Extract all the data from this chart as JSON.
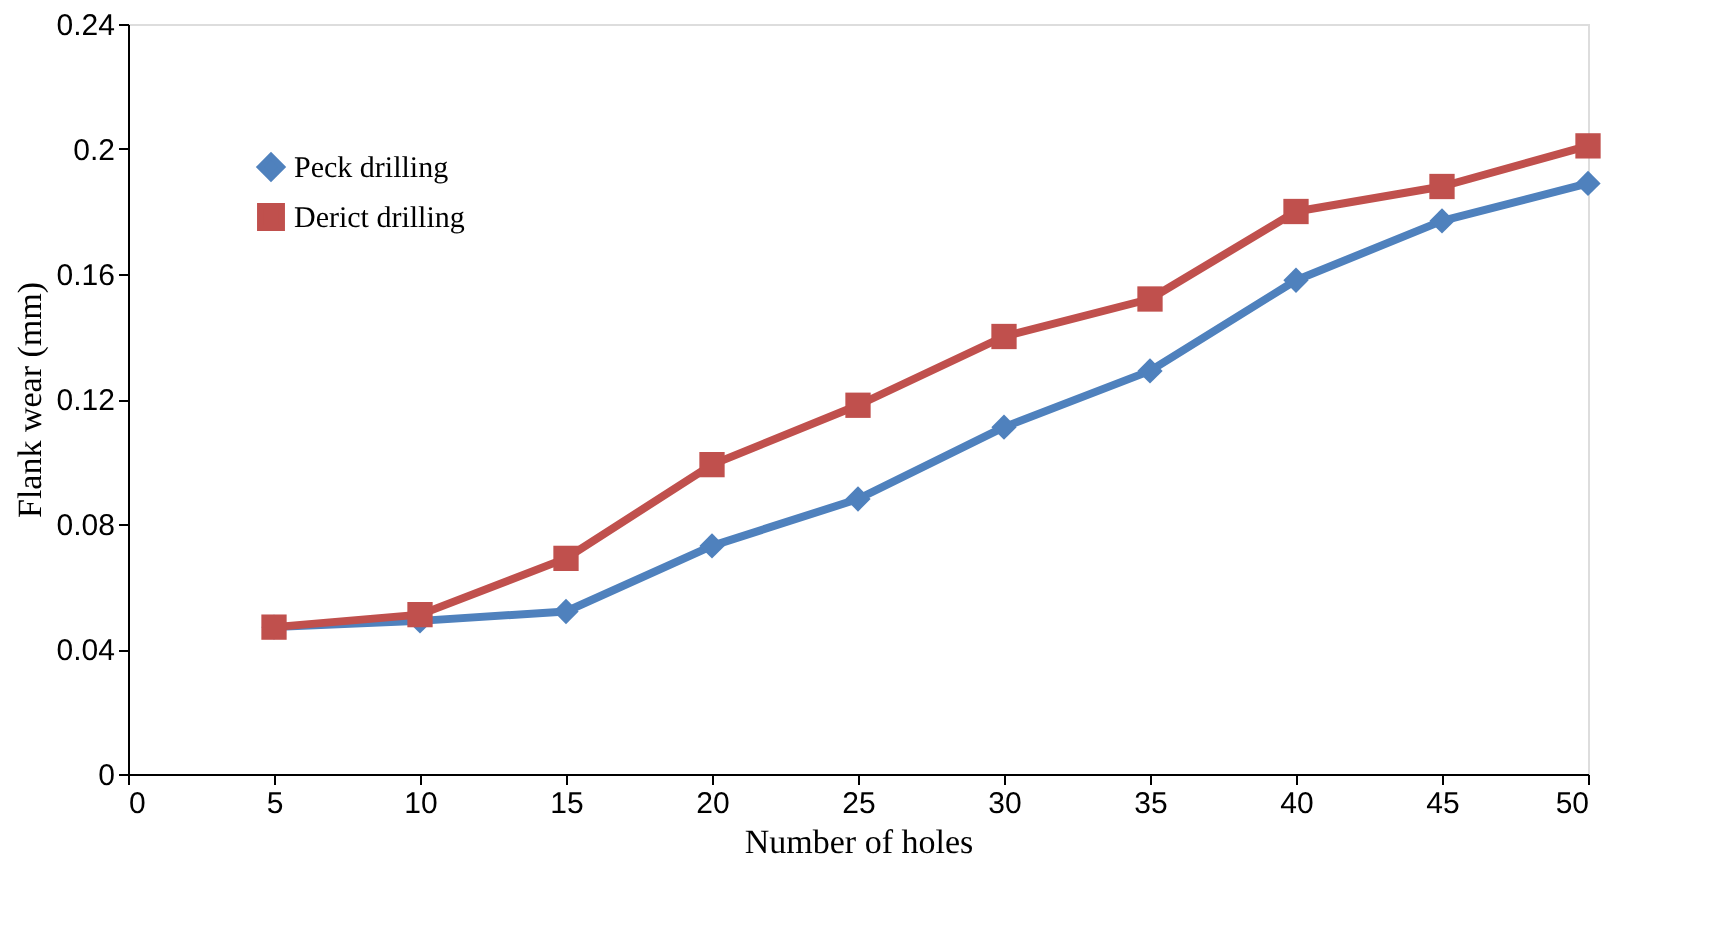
{
  "chart_data": {
    "type": "line",
    "xlabel": "Number of holes",
    "ylabel": "Flank wear (mm)",
    "x": [
      5,
      10,
      15,
      20,
      25,
      30,
      35,
      40,
      45,
      50
    ],
    "series": [
      {
        "name": "Peck drilling",
        "color": "#4f81bd",
        "marker": "diamond",
        "values": [
          0.047,
          0.049,
          0.052,
          0.073,
          0.088,
          0.111,
          0.129,
          0.158,
          0.177,
          0.189
        ]
      },
      {
        "name": "Derict drilling",
        "color": "#c0504d",
        "marker": "square",
        "values": [
          0.047,
          0.051,
          0.069,
          0.099,
          0.118,
          0.14,
          0.152,
          0.18,
          0.188,
          0.201
        ]
      }
    ],
    "xlim": [
      0,
      50
    ],
    "xticks": [
      0,
      5,
      10,
      15,
      20,
      25,
      30,
      35,
      40,
      45,
      50
    ],
    "ylim": [
      0,
      0.24
    ],
    "yticks": [
      0,
      0.04,
      0.08,
      0.12,
      0.16,
      0.2,
      0.24
    ],
    "grid": false,
    "legend": "top left",
    "line_style": "solid"
  }
}
